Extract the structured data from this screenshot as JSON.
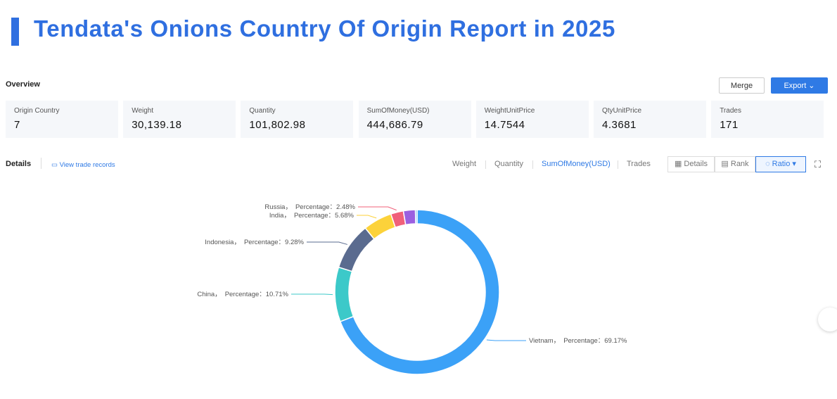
{
  "header": {
    "title": "Tendata's Onions Country Of Origin Report in 2025"
  },
  "overview": {
    "label": "Overview",
    "merge": "Merge",
    "export": "Export",
    "stats": [
      {
        "label": "Origin Country",
        "value": "7"
      },
      {
        "label": "Weight",
        "value": "30,139.18"
      },
      {
        "label": "Quantity",
        "value": "101,802.98"
      },
      {
        "label": "SumOfMoney(USD)",
        "value": "444,686.79"
      },
      {
        "label": "WeightUnitPrice",
        "value": "14.7544"
      },
      {
        "label": "QtyUnitPrice",
        "value": "4.3681"
      },
      {
        "label": "Trades",
        "value": "171"
      }
    ]
  },
  "details": {
    "label": "Details",
    "link": "View trade records",
    "metrics": [
      "Weight",
      "Quantity",
      "SumOfMoney(USD)",
      "Trades"
    ],
    "views": [
      "Details",
      "Rank",
      "Ratio"
    ]
  },
  "chart_data": {
    "type": "donut",
    "categories": [
      "Vietnam，",
      "China，",
      "Indonesia，",
      "India，",
      "Russia，",
      null,
      null
    ],
    "values": [
      69.17,
      10.71,
      9.28,
      5.68,
      2.48,
      2.35,
      0.33
    ],
    "value_labels": [
      "Percentage：69.17%",
      "Percentage：10.71%",
      "Percentage：9.28%",
      "Percentage：5.68%",
      "Percentage：2.48%",
      null,
      null
    ],
    "colors": [
      "#3ba1f7",
      "#3cc9c9",
      "#5a6b8f",
      "#fcd23a",
      "#f0607a",
      "#9b5fe0",
      "#5fb4f5"
    ]
  }
}
